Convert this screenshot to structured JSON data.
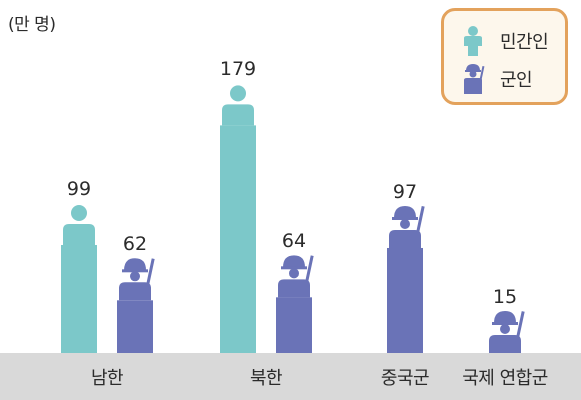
{
  "unit_label": "(만 명)",
  "legend": {
    "items": [
      {
        "label": "민간인",
        "icon": "civilian-icon",
        "color": "#7cc8c9"
      },
      {
        "label": "군인",
        "icon": "soldier-icon",
        "color": "#6a73b7"
      }
    ]
  },
  "colors": {
    "civilian": "#7cc8c9",
    "military": "#6a73b7",
    "baseline": "#d9d9d9",
    "legend_border": "#e3a25c",
    "legend_bg": "#fdf7ec"
  },
  "chart_data": {
    "type": "bar",
    "categories": [
      "남한",
      "북한",
      "중국군",
      "국제 연합군"
    ],
    "series": [
      {
        "name": "민간인",
        "values": [
          99,
          179,
          null,
          null
        ]
      },
      {
        "name": "군인",
        "values": [
          62,
          64,
          97,
          15
        ]
      }
    ],
    "title": "",
    "xlabel": "",
    "ylabel": "(만 명)",
    "ylim": [
      0,
      190
    ],
    "grid": false,
    "legend_position": "top-right"
  }
}
